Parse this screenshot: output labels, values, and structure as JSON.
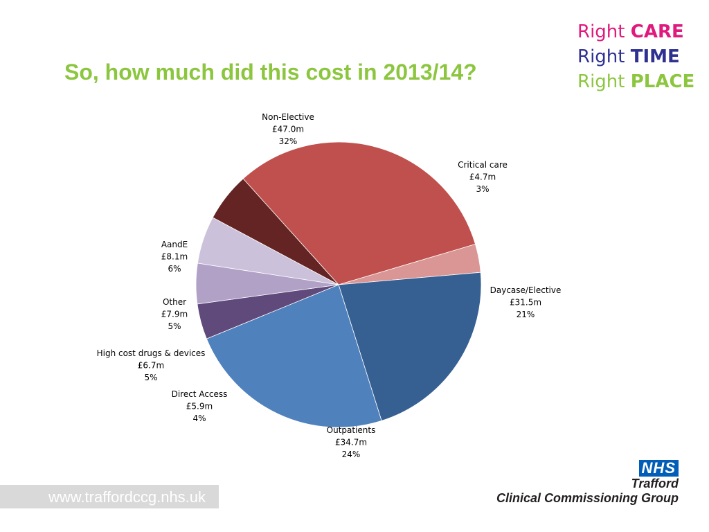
{
  "slide": {
    "title": "So, how much did this cost in 2013/14?",
    "tagline": [
      {
        "word": "Right",
        "emphasis": "CARE",
        "color": "#e0197d"
      },
      {
        "word": "Right",
        "emphasis": "TIME",
        "color": "#2e3192"
      },
      {
        "word": "Right",
        "emphasis": "PLACE",
        "color": "#8cc63f"
      }
    ],
    "website": "www.traffordccg.nhs.uk",
    "nhs_logo": "NHS",
    "org_name": "Trafford",
    "org_subtitle": "Clinical Commissioning Group"
  },
  "chart_data": {
    "type": "pie",
    "title": "",
    "slices": [
      {
        "label": "Non-Elective",
        "amount": "£47.0m",
        "value": 47.0,
        "percent": "32%",
        "color": "#c0504d"
      },
      {
        "label": "Critical care",
        "amount": "£4.7m",
        "value": 4.7,
        "percent": "3%",
        "color": "#d99694"
      },
      {
        "label": "Daycase/Elective",
        "amount": "£31.5m",
        "value": 31.5,
        "percent": "21%",
        "color": "#366092"
      },
      {
        "label": "Outpatients",
        "amount": "£34.7m",
        "value": 34.7,
        "percent": "24%",
        "color": "#4f81bd"
      },
      {
        "label": "Direct Access",
        "amount": "£5.9m",
        "value": 5.9,
        "percent": "4%",
        "color": "#604a7b"
      },
      {
        "label": "High cost drugs & devices",
        "amount": "£6.7m",
        "value": 6.7,
        "percent": "5%",
        "color": "#b2a1c7"
      },
      {
        "label": "Other",
        "amount": "£7.9m",
        "value": 7.9,
        "percent": "5%",
        "color": "#ccc1da"
      },
      {
        "label": "AandE",
        "amount": "£8.1m",
        "value": 8.1,
        "percent": "6%",
        "color": "#632423"
      }
    ]
  }
}
